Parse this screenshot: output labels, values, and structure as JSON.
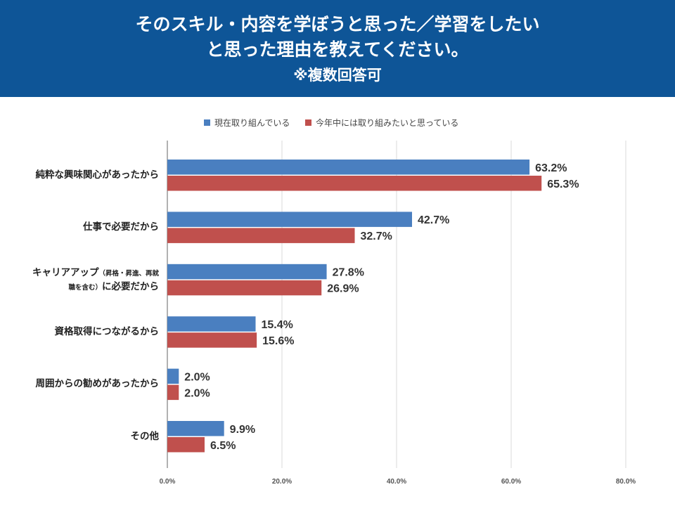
{
  "header": {
    "title_line1": "そのスキル・内容を学ぼうと思った／学習をしたい",
    "title_line2": "と思った理由を教えてください。",
    "note": "※複数回答可"
  },
  "colors": {
    "header_bg": "#0e5597",
    "series1": "#4a7fc0",
    "series2": "#c0504d",
    "grid": "#d9d9d9"
  },
  "chart_data": {
    "type": "bar",
    "orientation": "horizontal",
    "categories": [
      "純粋な興味関心があったから",
      "仕事で必要だから",
      "キャリアアップ（昇格・昇進、再就職を含む）に必要だから",
      "資格取得につながるから",
      "周囲からの勧めがあったから",
      "その他"
    ],
    "category_label_lines": [
      [
        "純粋な興味関心があったから"
      ],
      [
        "仕事で必要だから"
      ],
      [
        [
          "キャリアアップ",
          "（昇格・昇進、再就"
        ],
        [
          "職を含む）",
          "に必要だから"
        ]
      ],
      [
        "資格取得につながるから"
      ],
      [
        "周囲からの勧めがあったから"
      ],
      [
        "その他"
      ]
    ],
    "series": [
      {
        "name": "現在取り組んでいる",
        "values": [
          63.2,
          42.7,
          27.8,
          15.4,
          2.0,
          9.9
        ],
        "labels": [
          "63.2%",
          "42.7%",
          "27.8%",
          "15.4%",
          "2.0%",
          "9.9%"
        ]
      },
      {
        "name": "今年中には取り組みたいと思っている",
        "values": [
          65.3,
          32.7,
          26.9,
          15.6,
          2.0,
          6.5
        ],
        "labels": [
          "65.3%",
          "32.7%",
          "26.9%",
          "15.6%",
          "2.0%",
          "6.5%"
        ]
      }
    ],
    "xlim": [
      0,
      80
    ],
    "xticks": [
      0,
      20,
      40,
      60,
      80
    ],
    "xtick_labels": [
      "0.0%",
      "20.0%",
      "40.0%",
      "60.0%",
      "80.0%"
    ],
    "grid": true,
    "legend_position": "top-center"
  }
}
